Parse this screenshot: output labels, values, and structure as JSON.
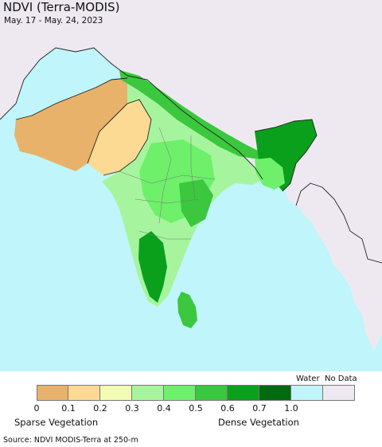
{
  "header": {
    "title": "NDVI (Terra-MODIS)",
    "subtitle": "May. 17 - May. 24, 2023"
  },
  "map": {
    "region": "South Asia",
    "layer": "NDVI",
    "colors": {
      "ocean": "#bff5fb",
      "no_data_land": "#eee9f0",
      "border": "#222222"
    }
  },
  "legend": {
    "water_label": "Water",
    "nodata_label": "No Data",
    "ticks": [
      "0",
      "0.1",
      "0.2",
      "0.3",
      "0.4",
      "0.5",
      "0.6",
      "0.7",
      "1.0"
    ],
    "swatches": [
      {
        "range": "0-0.1",
        "color": "#e8b26b"
      },
      {
        "range": "0.1-0.2",
        "color": "#fdda93"
      },
      {
        "range": "0.2-0.3",
        "color": "#f1fbb3"
      },
      {
        "range": "0.3-0.4",
        "color": "#a6f59e"
      },
      {
        "range": "0.4-0.5",
        "color": "#6ef06a"
      },
      {
        "range": "0.5-0.6",
        "color": "#3bc73e"
      },
      {
        "range": "0.6-0.7",
        "color": "#0aa01b"
      },
      {
        "range": "0.7-1.0",
        "color": "#036b0f"
      },
      {
        "range": "Water",
        "color": "#bff5fb"
      },
      {
        "range": "No Data",
        "color": "#eee9f0"
      }
    ],
    "sparse_label": "Sparse Vegetation",
    "dense_label": "Dense Vegetation"
  },
  "footer": {
    "source": "Source: NDVI MODIS-Terra at 250-m"
  }
}
